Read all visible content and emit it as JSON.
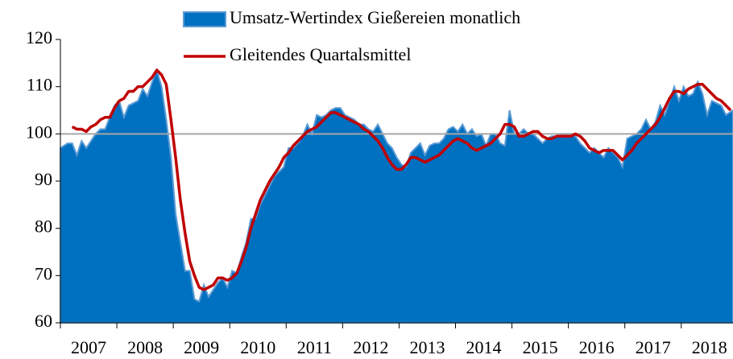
{
  "chart_data": {
    "type": "area_line",
    "categories": [
      null,
      null,
      null,
      null,
      null,
      null,
      "2007",
      null,
      null,
      null,
      null,
      null,
      null,
      null,
      null,
      null,
      null,
      null,
      "2008",
      null,
      null,
      null,
      null,
      null,
      null,
      null,
      null,
      null,
      null,
      null,
      "2009",
      null,
      null,
      null,
      null,
      null,
      null,
      null,
      null,
      null,
      null,
      null,
      "2010",
      null,
      null,
      null,
      null,
      null,
      null,
      null,
      null,
      null,
      null,
      null,
      "2011",
      null,
      null,
      null,
      null,
      null,
      null,
      null,
      null,
      null,
      null,
      null,
      "2012",
      null,
      null,
      null,
      null,
      null,
      null,
      null,
      null,
      null,
      null,
      null,
      "2013",
      null,
      null,
      null,
      null,
      null,
      null,
      null,
      null,
      null,
      null,
      null,
      "2014",
      null,
      null,
      null,
      null,
      null,
      null,
      null,
      null,
      null,
      null,
      null,
      "2015",
      null,
      null,
      null,
      null,
      null,
      null,
      null,
      null,
      null,
      null,
      null,
      "2016",
      null,
      null,
      null,
      null,
      null,
      null,
      null,
      null,
      null,
      null,
      null,
      "2017",
      null,
      null,
      null,
      null,
      null,
      null,
      null,
      null,
      null,
      null,
      null,
      "2018",
      null,
      null,
      null,
      null
    ],
    "series": [
      {
        "name": "Umsatz-Wertindex Gießereien monatlich",
        "color": "#0070c0",
        "edge": "#5b9bd5",
        "kind": "area",
        "values": [
          97,
          98,
          98,
          95.5,
          98.5,
          97,
          98.5,
          100,
          101,
          101,
          103.5,
          106,
          107,
          103.5,
          106,
          106.5,
          107,
          109.5,
          108,
          111,
          113.5,
          110,
          103,
          95,
          83,
          77,
          71,
          71,
          65,
          64.5,
          68,
          65.5,
          67,
          68.5,
          69.5,
          67.5,
          71,
          70.5,
          74,
          77,
          82,
          82,
          85,
          87,
          89,
          91,
          92,
          93,
          97,
          97,
          98,
          99.5,
          102,
          100,
          104,
          103.5,
          104,
          105,
          105.5,
          105.5,
          104,
          103.5,
          103,
          102,
          102,
          101,
          100.5,
          102,
          100,
          98,
          97,
          95,
          93.5,
          93,
          96,
          97,
          98,
          95.5,
          97.5,
          98,
          98,
          99,
          101,
          101.5,
          100.5,
          102,
          100,
          101,
          99.5,
          100,
          97.5,
          100,
          100,
          98,
          97.5,
          105,
          100,
          100,
          101,
          100,
          100,
          99,
          98,
          99,
          99.5,
          99.5,
          100,
          100,
          100,
          99.5,
          98,
          97,
          96,
          97,
          96,
          95,
          97,
          96,
          95,
          93,
          99,
          99.5,
          100,
          101,
          103,
          101,
          102.5,
          106,
          104,
          107,
          110,
          107,
          110,
          108,
          108.5,
          111,
          108.5,
          104,
          107,
          106.5,
          106,
          104,
          105
        ]
      },
      {
        "name": "Gleitendes Quartalsmittel",
        "color": "#c00000",
        "kind": "line",
        "values": [
          null,
          null,
          101.5,
          101,
          101,
          100.5,
          101.5,
          102,
          103,
          103.5,
          103.5,
          105.5,
          107,
          107.5,
          109,
          109,
          110,
          110,
          111,
          112,
          113.5,
          112.5,
          110.5,
          103,
          95,
          86,
          79,
          73,
          70,
          67.5,
          67,
          67.5,
          68,
          69.5,
          69.5,
          69,
          69.5,
          70.5,
          73,
          76,
          80,
          83,
          86,
          88,
          90,
          91.5,
          93,
          95,
          96,
          97.5,
          98.5,
          99.5,
          100.5,
          101,
          101.5,
          102.5,
          103.5,
          104.5,
          104.5,
          104,
          103.5,
          103,
          102.5,
          102,
          101,
          100.5,
          99.5,
          98.5,
          97,
          95,
          93.5,
          92.5,
          92.5,
          93.5,
          95,
          95,
          94.5,
          94,
          94.5,
          95,
          95.5,
          96.5,
          97.5,
          98.5,
          99,
          98.5,
          98,
          97,
          96.5,
          97,
          97.5,
          98,
          99,
          100,
          102,
          102,
          101.5,
          99.5,
          99.5,
          100,
          100.5,
          100.5,
          99.5,
          99,
          99,
          99.5,
          99.5,
          99.5,
          99.5,
          100,
          99.5,
          98.5,
          97,
          96.5,
          96,
          96.5,
          96.5,
          96.5,
          95.5,
          94.5,
          95.5,
          96.5,
          98,
          99,
          100,
          101,
          102,
          103.5,
          105.5,
          107.5,
          109,
          109,
          108.5,
          109.5,
          110,
          110.5,
          110.5,
          109.5,
          108.5,
          107.5,
          107,
          106,
          105
        ]
      }
    ],
    "ylim": [
      60,
      120
    ],
    "yticks": [
      60,
      70,
      80,
      90,
      100,
      110,
      120
    ],
    "reference_line": 100,
    "legend": "top"
  }
}
